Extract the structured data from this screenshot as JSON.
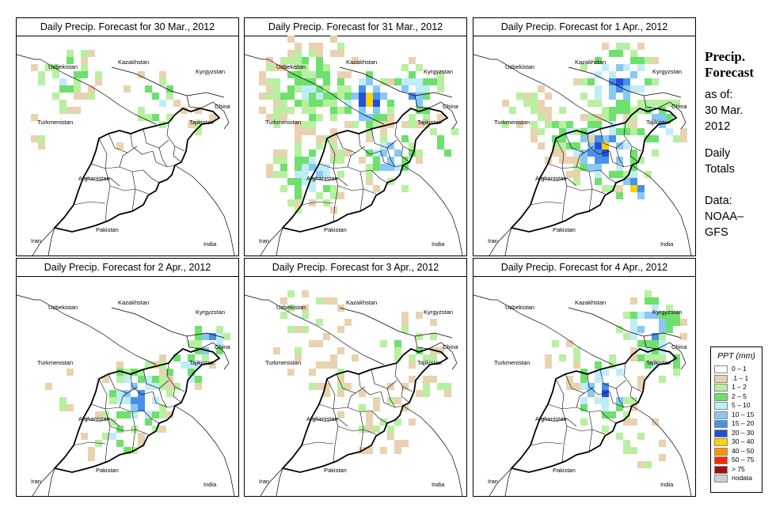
{
  "panels": [
    {
      "title": "Daily Precip. Forecast for  30 Mar., 2012",
      "day": 1
    },
    {
      "title": "Daily Precip. Forecast for  31 Mar., 2012",
      "day": 2
    },
    {
      "title": "Daily Precip. Forecast for  1 Apr., 2012",
      "day": 3
    },
    {
      "title": "Daily Precip. Forecast for  2 Apr., 2012",
      "day": 4
    },
    {
      "title": "Daily Precip. Forecast for  3 Apr., 2012",
      "day": 5
    },
    {
      "title": "Daily Precip. Forecast for  4 Apr., 2012",
      "day": 6
    }
  ],
  "map_labels": {
    "uzbekistan": "Uzbekistan",
    "kazakhstan": "Kazakhstan",
    "kyrgyzstan": "Kyrgyzstan",
    "turkmenistan": "Turkmenistan",
    "china": "China",
    "tajikistan": "Tajikistan",
    "afghanistan": "Afghanistan",
    "iran": "Iran",
    "pakistan": "Pakistan",
    "india": "India"
  },
  "sidebar": {
    "title_line1": "Precip.",
    "title_line2": "Forecast",
    "asof_line1": "as of:",
    "asof_line2": "30 Mar.",
    "asof_line3": "2012",
    "totals_line1": "Daily",
    "totals_line2": "Totals",
    "data_line1": "Data:",
    "data_line2": "NOAA–",
    "data_line3": "GFS"
  },
  "legend": {
    "title": "PPT (mm)",
    "items": [
      {
        "label": "0 – 1",
        "color": "#ffffff"
      },
      {
        "label": ".1 – 1",
        "color": "#e8d2b0"
      },
      {
        "label": "1 – 2",
        "color": "#b8f0a0"
      },
      {
        "label": "2 – 5",
        "color": "#6ee06e"
      },
      {
        "label": "5 – 10",
        "color": "#c0ecf8"
      },
      {
        "label": "10 – 15",
        "color": "#88c8f4"
      },
      {
        "label": "15 – 20",
        "color": "#4a90e8"
      },
      {
        "label": "20 – 30",
        "color": "#2050d8"
      },
      {
        "label": "30 – 40",
        "color": "#ffd200"
      },
      {
        "label": "40 – 50",
        "color": "#ff9600"
      },
      {
        "label": "50 – 75",
        "color": "#ff2800"
      },
      {
        "label": "> 75",
        "color": "#a01010"
      },
      {
        "label": "nodata",
        "color": "#d0d0d0"
      }
    ]
  }
}
